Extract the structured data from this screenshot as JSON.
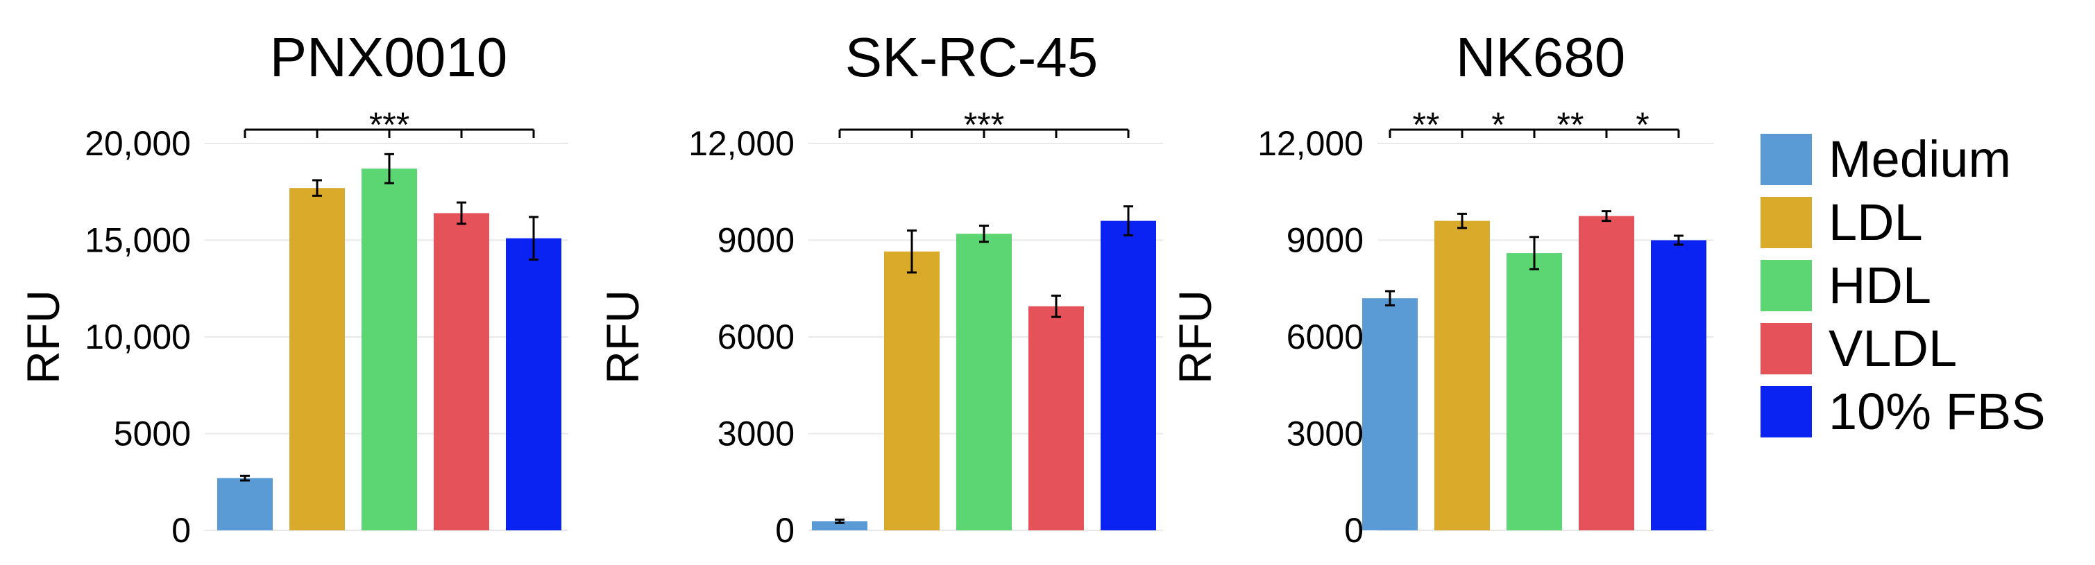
{
  "chart_data": [
    {
      "type": "bar",
      "title": "PNX0010",
      "ylabel": "RFU",
      "xlabel": "",
      "categories": [
        "Medium",
        "LDL",
        "HDL",
        "VLDL",
        "10% FBS"
      ],
      "values": [
        2700,
        17700,
        18700,
        16400,
        15100
      ],
      "errors": [
        120,
        400,
        750,
        550,
        1100
      ],
      "ylim": [
        0,
        20000
      ],
      "yticks": [
        0,
        5000,
        10000,
        15000,
        20000
      ],
      "ytick_labels": [
        "0",
        "5000",
        "10,000",
        "15,000",
        "20,000"
      ],
      "significance": [
        {
          "label": "***",
          "from": 0,
          "to": 4
        }
      ]
    },
    {
      "type": "bar",
      "title": "SK-RC-45",
      "ylabel": "RFU",
      "xlabel": "",
      "categories": [
        "Medium",
        "LDL",
        "HDL",
        "VLDL",
        "10% FBS"
      ],
      "values": [
        280,
        8650,
        9200,
        6950,
        9600
      ],
      "errors": [
        50,
        650,
        250,
        330,
        450
      ],
      "ylim": [
        0,
        12000
      ],
      "yticks": [
        0,
        3000,
        6000,
        9000,
        12000
      ],
      "ytick_labels": [
        "0",
        "3000",
        "6000",
        "9000",
        "12,000"
      ],
      "significance": [
        {
          "label": "***",
          "from": 0,
          "to": 4
        }
      ]
    },
    {
      "type": "bar",
      "title": "NK680",
      "ylabel": "RFU",
      "xlabel": "",
      "categories": [
        "Medium",
        "LDL",
        "HDL",
        "VLDL",
        "10% FBS"
      ],
      "values": [
        7200,
        9600,
        8600,
        9750,
        9000
      ],
      "errors": [
        220,
        220,
        500,
        150,
        140
      ],
      "ylim": [
        0,
        12000
      ],
      "yticks": [
        0,
        3000,
        6000,
        9000,
        12000
      ],
      "ytick_labels": [
        "0",
        "3000",
        "6000",
        "9000",
        "12,000"
      ],
      "significance": [
        {
          "label": "**",
          "from": 0,
          "to": 1
        },
        {
          "label": "*",
          "from": 1,
          "to": 2
        },
        {
          "label": "**",
          "from": 2,
          "to": 3
        },
        {
          "label": "*",
          "from": 3,
          "to": 4
        }
      ]
    }
  ],
  "legend": {
    "placement": "right",
    "items": [
      {
        "label": "Medium",
        "color": "#5B9BD5"
      },
      {
        "label": "LDL",
        "color": "#DAAA2B"
      },
      {
        "label": "HDL",
        "color": "#5BD672"
      },
      {
        "label": "VLDL",
        "color": "#E5525A"
      },
      {
        "label": "10% FBS",
        "color": "#0A23F3"
      }
    ]
  }
}
